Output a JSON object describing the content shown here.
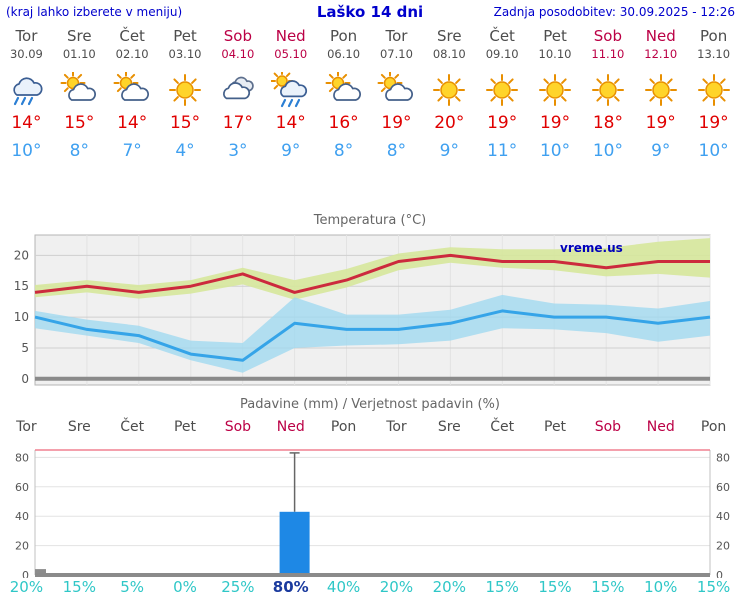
{
  "header": {
    "note": "(kraj lahko izberete v meniju)",
    "title": "Laško 14 dni",
    "updated": "Zadnja posodobitev: 30.09.2025 - 12:26"
  },
  "colors": {
    "link_blue": "#0000cc",
    "day_gray": "#4d4d4d",
    "weekend": "#bb0045",
    "tmax": "#e00000",
    "tmin": "#3fa0f0",
    "percent": "#2fc7c7",
    "percent_active": "#1a3a9e",
    "bar": "#1e88e5",
    "band_max": "#d6e79b",
    "band_min": "#9fd8f0",
    "line_max": "#cc2a3d",
    "line_min": "#35a4e8"
  },
  "days": [
    {
      "name": "Tor",
      "date": "30.09",
      "weekend": false,
      "icon": "rain",
      "tmax": "14°",
      "tmin": "10°"
    },
    {
      "name": "Sre",
      "date": "01.10",
      "weekend": false,
      "icon": "partly-cloudy",
      "tmax": "15°",
      "tmin": "8°"
    },
    {
      "name": "Čet",
      "date": "02.10",
      "weekend": false,
      "icon": "partly-cloudy",
      "tmax": "14°",
      "tmin": "7°"
    },
    {
      "name": "Pet",
      "date": "03.10",
      "weekend": false,
      "icon": "sunny",
      "tmax": "15°",
      "tmin": "4°"
    },
    {
      "name": "Sob",
      "date": "04.10",
      "weekend": true,
      "icon": "cloudy",
      "tmax": "17°",
      "tmin": "3°"
    },
    {
      "name": "Ned",
      "date": "05.10",
      "weekend": true,
      "icon": "rain-sun",
      "tmax": "14°",
      "tmin": "9°"
    },
    {
      "name": "Pon",
      "date": "06.10",
      "weekend": false,
      "icon": "partly-cloudy",
      "tmax": "16°",
      "tmin": "8°"
    },
    {
      "name": "Tor",
      "date": "07.10",
      "weekend": false,
      "icon": "partly-cloudy",
      "tmax": "19°",
      "tmin": "8°"
    },
    {
      "name": "Sre",
      "date": "08.10",
      "weekend": false,
      "icon": "sunny",
      "tmax": "20°",
      "tmin": "9°"
    },
    {
      "name": "Čet",
      "date": "09.10",
      "weekend": false,
      "icon": "sunny",
      "tmax": "19°",
      "tmin": "11°"
    },
    {
      "name": "Pet",
      "date": "10.10",
      "weekend": false,
      "icon": "sunny",
      "tmax": "19°",
      "tmin": "10°"
    },
    {
      "name": "Sob",
      "date": "11.10",
      "weekend": true,
      "icon": "sunny",
      "tmax": "18°",
      "tmin": "10°"
    },
    {
      "name": "Ned",
      "date": "12.10",
      "weekend": true,
      "icon": "sunny",
      "tmax": "19°",
      "tmin": "9°"
    },
    {
      "name": "Pon",
      "date": "13.10",
      "weekend": false,
      "icon": "sunny",
      "tmax": "19°",
      "tmin": "10°"
    }
  ],
  "chart_data": [
    {
      "type": "line",
      "title": "Temperatura (°C)",
      "watermark": "vreme.us",
      "categories": [
        "Tor",
        "Sre",
        "Čet",
        "Pet",
        "Sob",
        "Ned",
        "Pon",
        "Tor",
        "Sre",
        "Čet",
        "Pet",
        "Sob",
        "Ned",
        "Pon"
      ],
      "yticks": [
        0,
        5,
        10,
        15,
        20
      ],
      "ylim": [
        -1,
        23.3
      ],
      "grid": true,
      "series": [
        {
          "name": "max-temperature",
          "values": [
            14,
            15,
            14,
            15,
            17,
            14,
            16,
            19,
            20,
            19,
            19,
            18,
            19,
            19
          ]
        },
        {
          "name": "min-temperature",
          "values": [
            10,
            8,
            7,
            4,
            3,
            9,
            8,
            8,
            9,
            11,
            10,
            10,
            9,
            10
          ]
        }
      ],
      "bands": [
        {
          "name": "max-temperature-range",
          "upper": [
            15.2,
            16,
            15.2,
            16,
            18,
            16,
            17.8,
            20.3,
            21.3,
            21,
            21,
            21.2,
            22.2,
            22.8
          ],
          "lower": [
            13.2,
            14,
            13,
            13.8,
            15.3,
            12.8,
            14.8,
            17.6,
            18.8,
            18,
            17.6,
            16.6,
            17,
            16.4
          ]
        },
        {
          "name": "min-temperature-range",
          "upper": [
            11,
            9.6,
            8.6,
            6.2,
            5.8,
            13.2,
            10.4,
            10.4,
            11.2,
            13.6,
            12.2,
            12,
            11.4,
            12.6
          ],
          "lower": [
            8.2,
            7,
            5.8,
            3,
            1,
            5,
            5.4,
            5.6,
            6.2,
            8.2,
            8,
            7.4,
            6,
            7
          ]
        }
      ]
    },
    {
      "type": "bar",
      "title": "Padavine (mm) / Verjetnost padavin (%)",
      "categories": [
        "Tor",
        "Sre",
        "Čet",
        "Pet",
        "Sob",
        "Ned",
        "Pon",
        "Tor",
        "Sre",
        "Čet",
        "Pet",
        "Sob",
        "Ned",
        "Pon"
      ],
      "weekend_idx": [
        4,
        5,
        11,
        12
      ],
      "yticks": [
        0,
        20,
        40,
        60,
        80
      ],
      "ylim": [
        0,
        85
      ],
      "bars": [
        {
          "index": 5,
          "mm": 43,
          "whisker_mm": 83
        }
      ],
      "minor_marks": [
        {
          "index": 0,
          "mm": 4
        }
      ],
      "probabilities": [
        "20%",
        "15%",
        "5%",
        "0%",
        "25%",
        "80%",
        "40%",
        "20%",
        "20%",
        "15%",
        "15%",
        "15%",
        "10%",
        "15%"
      ],
      "highlight_index": 5
    }
  ]
}
